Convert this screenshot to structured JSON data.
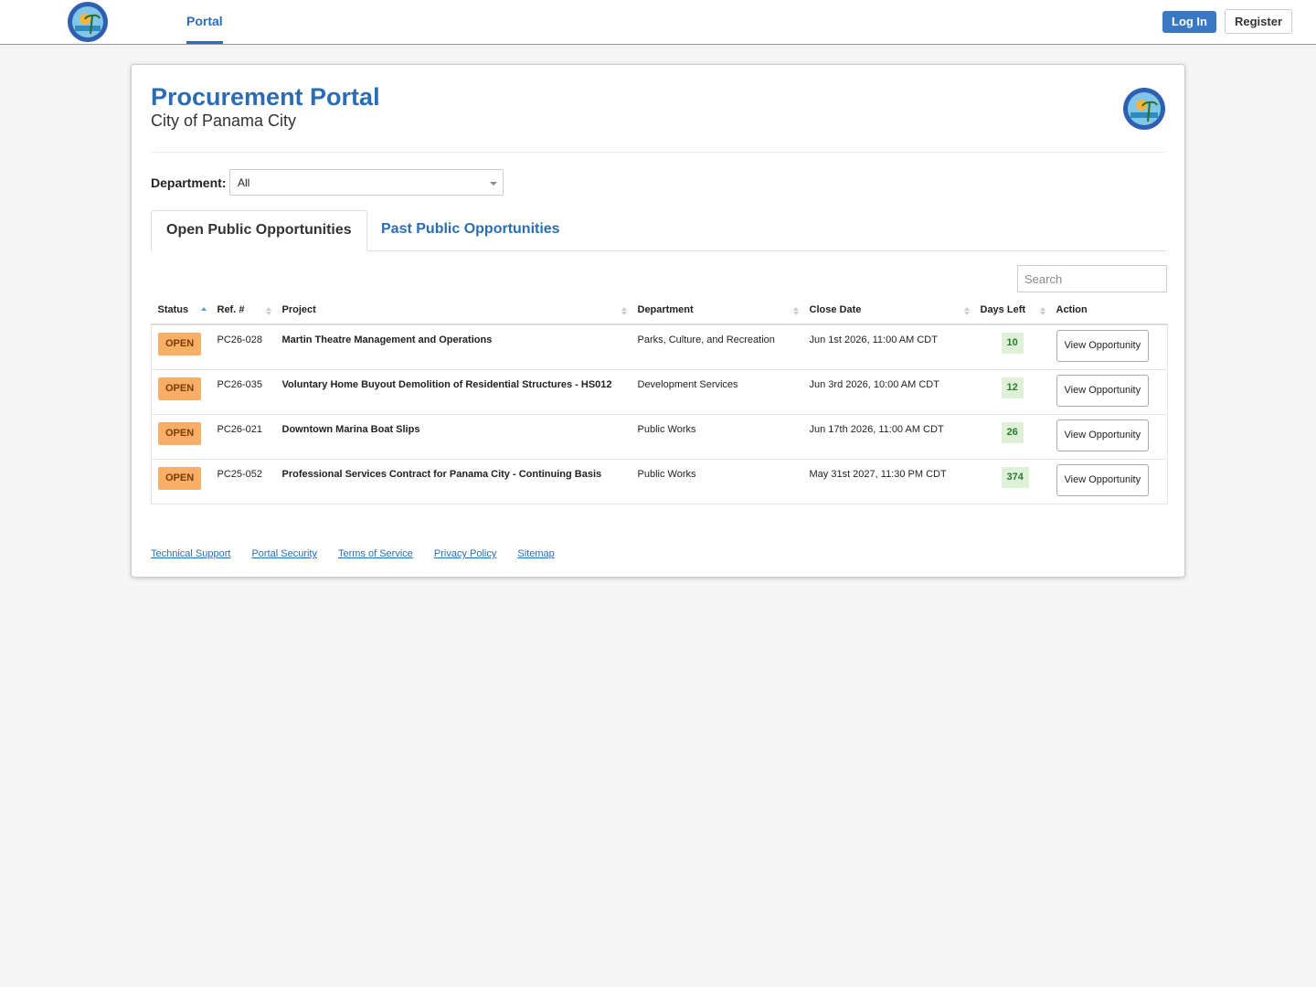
{
  "nav": {
    "link": "Portal",
    "login": "Log In",
    "register": "Register"
  },
  "header": {
    "title": "Procurement Portal",
    "subtitle": "City of Panama City"
  },
  "filter": {
    "label": "Department:",
    "value": "All"
  },
  "tabs": [
    "Open Public Opportunities",
    "Past Public Opportunities"
  ],
  "search": {
    "placeholder": "Search"
  },
  "table": {
    "columns": [
      "Status",
      "Ref. #",
      "Project",
      "Department",
      "Close Date",
      "Days Left",
      "Action"
    ],
    "rows": [
      [
        "OPEN",
        "PC26-028",
        "Martin Theatre Management and Operations",
        "Parks, Culture, and Recreation",
        "Jun 1st 2026, 11:00 AM CDT",
        10,
        "View Opportunity"
      ],
      [
        "OPEN",
        "PC26-035",
        "Voluntary Home Buyout Demolition of Residential Structures - HS012",
        "Development Services",
        "Jun 3rd 2026, 10:00 AM CDT",
        12,
        "View Opportunity"
      ],
      [
        "OPEN",
        "PC26-021",
        "Downtown Marina Boat Slips",
        "Public Works",
        "Jun 17th 2026, 11:00 AM CDT",
        26,
        "View Opportunity"
      ],
      [
        "OPEN",
        "PC25-052",
        "Professional Services Contract for Panama City - Continuing Basis",
        "Public Works",
        "May 31st 2027, 11:30 PM CDT",
        374,
        "View Opportunity"
      ]
    ]
  },
  "footer": {
    "links": [
      "Technical Support",
      "Portal Security",
      "Terms of Service",
      "Privacy Policy",
      "Sitemap"
    ]
  }
}
